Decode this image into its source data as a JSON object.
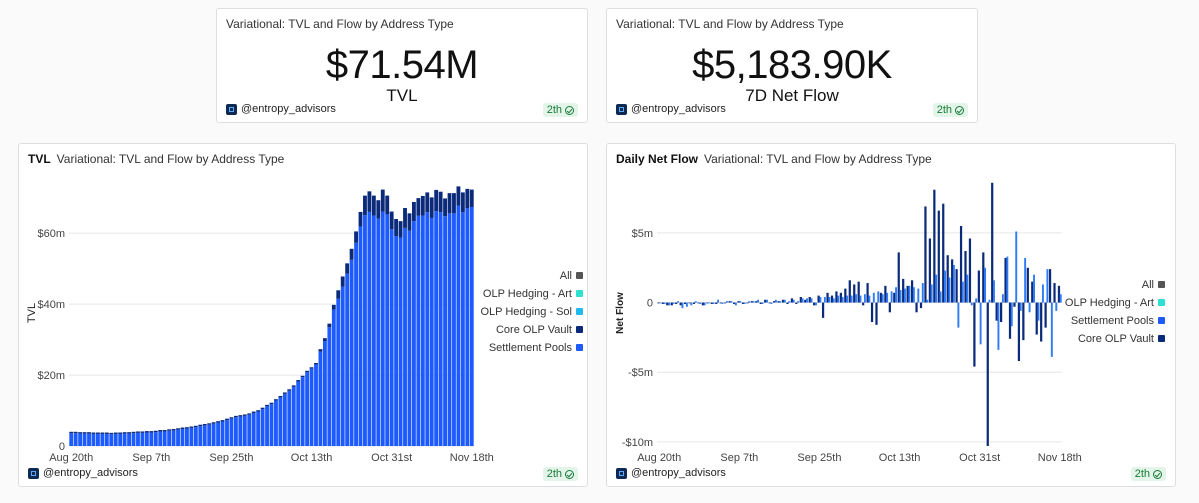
{
  "counters": [
    {
      "title": "Variational: TVL and Flow by Address Type",
      "value": "$71.54M",
      "label": "TVL",
      "author": "@entropy_advisors",
      "age": "2th"
    },
    {
      "title": "Variational: TVL and Flow by Address Type",
      "value": "$5,183.90K",
      "label": "7D Net Flow",
      "author": "@entropy_advisors",
      "age": "2th"
    }
  ],
  "charts": [
    {
      "name": "TVL",
      "subtitle": "Variational: TVL and Flow by Address Type",
      "author": "@entropy_advisors",
      "age": "2th"
    },
    {
      "name": "Daily Net Flow",
      "subtitle": "Variational: TVL and Flow by Address Type",
      "author": "@entropy_advisors",
      "age": "2th"
    }
  ],
  "colors": {
    "All": "#555555",
    "OLP Hedging - Art": "#2ee0d0",
    "OLP Hedging - Sol": "#22b8f0",
    "Core OLP Vault": "#0b2a7a",
    "Settlement Pools": "#1d5bff",
    "Settlement Pools (flow)": "#2f7cf6"
  },
  "chart_data": [
    {
      "type": "bar",
      "stacked": true,
      "title": "TVL",
      "subtitle": "Variational: TVL and Flow by Address Type",
      "ylabel": "TVL",
      "xlabel": "",
      "ylim": [
        0,
        75
      ],
      "yticks": [
        0,
        20,
        40,
        60
      ],
      "ytick_labels": [
        "0",
        "$20m",
        "$40m",
        "$60m"
      ],
      "xtick_labels": [
        "Aug 20th",
        "Sep 7th",
        "Sep 25th",
        "Oct 13th",
        "Oct 31st",
        "Nov 18th"
      ],
      "xtick_index": [
        0,
        18,
        36,
        54,
        72,
        90
      ],
      "grid": true,
      "legend_position": "right",
      "legend": [
        "All",
        "OLP Hedging - Art",
        "OLP Hedging - Sol",
        "Core OLP Vault",
        "Settlement Pools"
      ],
      "unit": "$m",
      "series": [
        {
          "name": "Settlement Pools",
          "values": [
            3.6,
            3.6,
            3.5,
            3.5,
            3.5,
            3.4,
            3.4,
            3.4,
            3.4,
            3.3,
            3.4,
            3.4,
            3.5,
            3.5,
            3.6,
            3.7,
            3.7,
            3.8,
            3.8,
            3.9,
            4.1,
            4.1,
            4.3,
            4.4,
            4.6,
            4.8,
            4.9,
            5.1,
            5.3,
            5.6,
            5.8,
            6.0,
            6.3,
            6.6,
            6.9,
            7.3,
            7.7,
            8.1,
            8.3,
            8.5,
            8.8,
            9.3,
            9.7,
            10.4,
            11.2,
            11.8,
            12.8,
            13.7,
            14.7,
            15.6,
            16.7,
            18.2,
            19.4,
            20.8,
            21.8,
            23.0,
            26.6,
            29.6,
            33.5,
            38.5,
            41.5,
            44.9,
            48.6,
            52.5,
            57.3,
            61.9,
            65.1,
            66.0,
            65.0,
            64.1,
            66.1,
            65.3,
            61.1,
            59.2,
            58.8,
            61.5,
            60.7,
            63.4,
            64.9,
            65.0,
            65.9,
            64.3,
            66.2,
            65.9,
            64.8,
            65.6,
            65.6,
            67.8,
            65.9,
            67.1,
            67.4
          ]
        },
        {
          "name": "Core OLP Vault",
          "values": [
            0.4,
            0.4,
            0.4,
            0.4,
            0.4,
            0.4,
            0.4,
            0.4,
            0.4,
            0.4,
            0.4,
            0.4,
            0.4,
            0.4,
            0.4,
            0.4,
            0.4,
            0.4,
            0.4,
            0.4,
            0.4,
            0.4,
            0.4,
            0.4,
            0.4,
            0.4,
            0.4,
            0.4,
            0.4,
            0.4,
            0.4,
            0.4,
            0.4,
            0.4,
            0.4,
            0.4,
            0.4,
            0.4,
            0.4,
            0.4,
            0.4,
            0.4,
            0.4,
            0.4,
            0.4,
            0.4,
            0.4,
            0.4,
            0.4,
            0.4,
            0.4,
            0.4,
            0.4,
            0.4,
            0.4,
            0.4,
            0.7,
            0.8,
            1.0,
            1.3,
            2.4,
            2.9,
            2.9,
            3.1,
            3.2,
            4.1,
            5.5,
            5.8,
            5.6,
            5.2,
            6.2,
            5.3,
            5.0,
            4.8,
            4.6,
            5.6,
            4.9,
            5.4,
            5.0,
            5.5,
            5.6,
            5.8,
            6.0,
            5.8,
            5.0,
            5.7,
            5.7,
            5.4,
            5.6,
            5.4,
            4.9
          ]
        }
      ]
    },
    {
      "type": "bar",
      "stacked": false,
      "title": "Daily Net Flow",
      "subtitle": "Variational: TVL and Flow by Address Type",
      "ylabel": "Net Flow",
      "xlabel": "",
      "ylim": [
        -10.3,
        8.8
      ],
      "yticks": [
        -10,
        -5,
        0,
        5
      ],
      "ytick_labels": [
        "-$10m",
        "-$5m",
        "0",
        "$5m"
      ],
      "xtick_labels": [
        "Aug 20th",
        "Sep 7th",
        "Sep 25th",
        "Oct 13th",
        "Oct 31st",
        "Nov 18th"
      ],
      "xtick_index": [
        0,
        18,
        36,
        54,
        72,
        90
      ],
      "grid": true,
      "legend_position": "right",
      "legend": [
        "All",
        "OLP Hedging - Art",
        "Settlement Pools",
        "Core OLP Vault"
      ],
      "unit": "$m",
      "series": [
        {
          "name": "Settlement Pools",
          "values": [
            0,
            -0.1,
            -0.2,
            -0.1,
            0.1,
            -0.4,
            -0.3,
            -0.2,
            0.1,
            -0.1,
            -0.2,
            0,
            -0.1,
            0.2,
            -0.1,
            0.1,
            0.1,
            -0.2,
            0.1,
            -0.1,
            0.1,
            0.1,
            0.2,
            -0.1,
            0.2,
            -0.1,
            0.2,
            0.1,
            0.2,
            0.1,
            0.2,
            0.1,
            0.3,
            0.3,
            0.3,
            -0.2,
            0.4,
            0.4,
            0.4,
            0.3,
            0.5,
            0.4,
            0.5,
            0.5,
            0.6,
            0.5,
            0.6,
            0.5,
            0.7,
            0.8,
            0.6,
            0.7,
            0.8,
            1.1,
            0.9,
            1.0,
            1.2,
            1.1,
            1.0,
            1.4,
            0.2,
            1.3,
            2.0,
            0.8,
            2.3,
            1.8,
            2.7,
            -1.8,
            1.5,
            2.0,
            -0.2,
            0.3,
            -3.0,
            2.5,
            0.2,
            1.6,
            -3.4,
            0.6,
            3.3,
            -1.7,
            5.1,
            -0.6,
            3.2,
            -0.7,
            2.0,
            -1.3,
            1.3,
            2.4,
            -3.9,
            -0.6,
            0.6
          ]
        },
        {
          "name": "Core OLP Vault",
          "values": [
            0,
            -0.1,
            -0.2,
            -0.2,
            -0.1,
            -0.2,
            -0.1,
            0,
            -0.1,
            0,
            -0.2,
            0,
            -0.1,
            -0.1,
            0,
            0,
            0.1,
            -0.1,
            0.1,
            -0.1,
            0,
            0.1,
            0.1,
            -0.1,
            0.2,
            0,
            0.1,
            0.1,
            0.2,
            -0.1,
            0.3,
            -0.1,
            0.4,
            0.2,
            0.4,
            -0.2,
            0.5,
            -1.1,
            0.7,
            0.5,
            0.8,
            0.7,
            1.0,
            1.6,
            1.3,
            1.5,
            -0.2,
            1.4,
            -1.4,
            -1.6,
            0.7,
            1.2,
            -0.7,
            0.7,
            3.6,
            1.7,
            1.2,
            1.6,
            -0.7,
            -0.4,
            6.9,
            4.6,
            8.1,
            6.6,
            7.1,
            3.4,
            3.1,
            2.4,
            5.5,
            3.7,
            4.6,
            -4.6,
            2.3,
            3.6,
            -10.3,
            8.6,
            -1.3,
            -1.4,
            3.2,
            -2.6,
            -0.3,
            -4.2,
            -2.7,
            2.5,
            1.5,
            -2.3,
            -2.8,
            -1.8,
            2.4,
            1.4,
            1.2
          ]
        }
      ]
    }
  ]
}
